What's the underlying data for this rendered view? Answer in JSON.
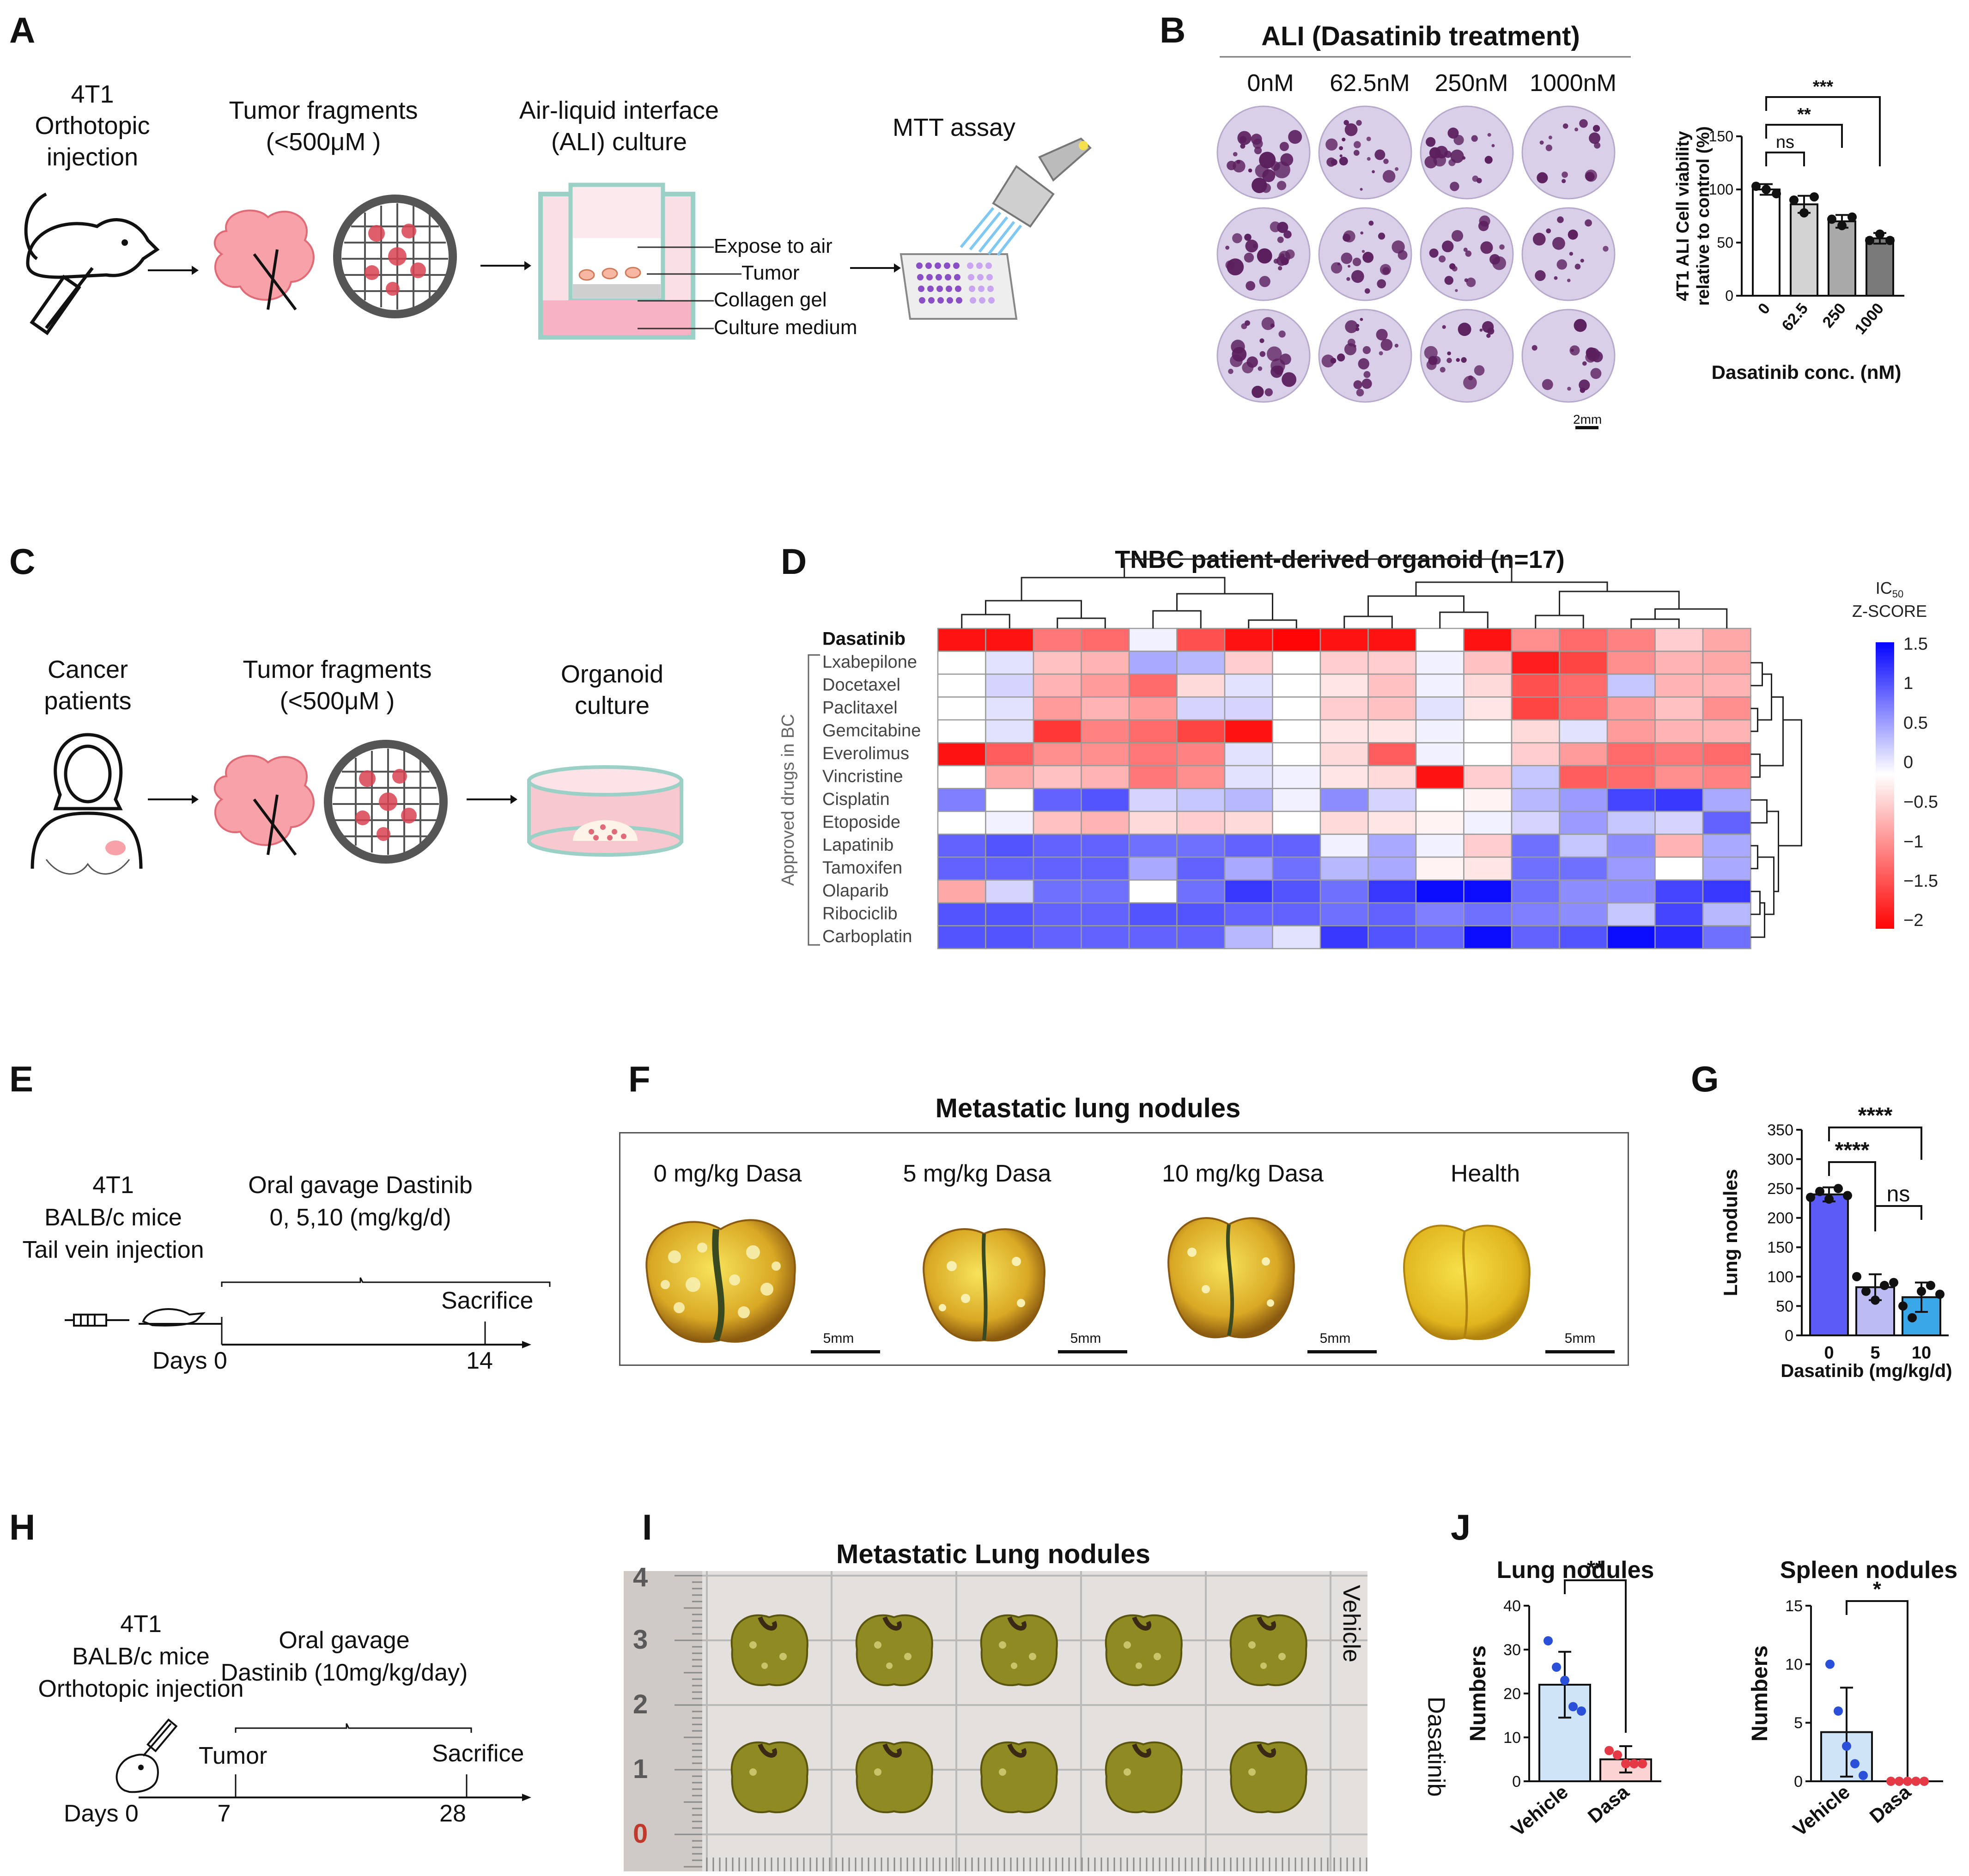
{
  "panels": [
    "A",
    "B",
    "C",
    "D",
    "E",
    "F",
    "G",
    "H",
    "I",
    "J"
  ],
  "A": {
    "step1": [
      "4T1",
      "Orthotopic",
      "injection"
    ],
    "step2": [
      "Tumor fragments",
      "(<500μM )"
    ],
    "step3": [
      "Air-liquid interface",
      "(ALI) culture"
    ],
    "step4": "MTT assay",
    "labels": [
      "Expose to air",
      "Tumor",
      "Collagen gel",
      "Culture medium"
    ]
  },
  "B": {
    "title": "ALI (Dasatinib treatment)",
    "columns": [
      "0nM",
      "62.5nM",
      "250nM",
      "1000nM"
    ],
    "scalebar": "2mm"
  },
  "C": {
    "step1": [
      "Cancer",
      "patients"
    ],
    "step2": [
      "Tumor fragments",
      "(<500μM )"
    ],
    "step3": [
      "Organoid",
      "culture"
    ]
  },
  "D": {
    "title": "TNBC patient-derived organoid (n=17)",
    "group_label": "Approved drugs in BC",
    "rows": [
      "Dasatinib",
      "Lxabepilone",
      "Docetaxel",
      "Paclitaxel",
      "Gemcitabine",
      "Everolimus",
      "Vincristine",
      "Cisplatin",
      "Etoposide",
      "Lapatinib",
      "Tamoxifen",
      "Olaparib",
      "Ribociclib",
      "Carboplatin"
    ],
    "legend_title_main": "IC",
    "legend_title_sub": "50",
    "legend_title_2": "Z-SCORE",
    "legend_ticks": [
      "1.5",
      "1",
      "0.5",
      "0",
      "−0.5",
      "−1",
      "−1.5",
      "−2"
    ],
    "matrix": [
      [
        -1.9,
        -1.9,
        -1.1,
        -1.2,
        0.1,
        -1.4,
        -1.9,
        -2,
        -1.9,
        -1.9,
        0,
        -1.9,
        -0.9,
        -1.2,
        -1,
        -0.4,
        -0.7
      ],
      [
        0,
        0.2,
        -0.5,
        -0.6,
        0.6,
        0.5,
        -0.4,
        0,
        -0.4,
        -0.4,
        0.1,
        -0.5,
        -1.8,
        -1.5,
        -0.9,
        -0.6,
        -0.7
      ],
      [
        0,
        0.3,
        -0.6,
        -0.8,
        -1.2,
        -0.3,
        0.2,
        0,
        -0.2,
        -0.5,
        0.1,
        -0.3,
        -1.4,
        -1.2,
        0.4,
        -0.6,
        -0.6
      ],
      [
        0,
        0.2,
        -0.8,
        -0.6,
        -0.8,
        0.3,
        0.3,
        0,
        -0.4,
        -0.5,
        0.2,
        -0.2,
        -1.5,
        -1.2,
        -0.8,
        -0.5,
        -0.9
      ],
      [
        0,
        0.2,
        -1.6,
        -1.0,
        -1.2,
        -1.5,
        -1.9,
        0,
        -0.2,
        -0.2,
        0.1,
        0,
        -0.3,
        0.2,
        -0.8,
        -0.6,
        -0.6
      ],
      [
        -1.9,
        -1.3,
        -0.9,
        -0.9,
        -1.1,
        -1.0,
        0.2,
        0,
        -0.3,
        -1.3,
        0.1,
        0,
        -0.4,
        -0.8,
        -1.2,
        -1.1,
        -1.2
      ],
      [
        0,
        -0.7,
        -0.5,
        -0.6,
        -1.1,
        -0.9,
        0.2,
        0.1,
        -0.2,
        -0.3,
        -1.9,
        -0.4,
        0.4,
        -1.3,
        -1.2,
        -0.9,
        -1.0
      ],
      [
        0.9,
        0,
        1.1,
        1.2,
        0.3,
        0.4,
        0.5,
        0.1,
        0.8,
        0.3,
        0,
        -0.1,
        0.5,
        0.7,
        1.3,
        1.4,
        0.6
      ],
      [
        0,
        0.1,
        -0.5,
        -0.6,
        -0.3,
        -0.4,
        -0.3,
        0,
        -0.3,
        -0.2,
        -0.1,
        0.1,
        0.3,
        0.7,
        0.4,
        0.3,
        1.1
      ],
      [
        1.1,
        1.2,
        1.1,
        1.1,
        1.0,
        1.0,
        1.1,
        1.1,
        0.1,
        0.6,
        0.1,
        -0.4,
        1.0,
        0.4,
        0.8,
        -0.6,
        0.6
      ],
      [
        1.1,
        1.1,
        1.1,
        1.1,
        0.6,
        1.1,
        0.6,
        1.0,
        0.5,
        0.6,
        -0.1,
        -0.2,
        1.0,
        1.0,
        0.7,
        0,
        0.6
      ],
      [
        -0.7,
        0.3,
        1.0,
        1.0,
        0,
        1.0,
        1.4,
        1.2,
        1.0,
        1.4,
        1.7,
        1.7,
        1.0,
        0.8,
        0.8,
        1.3,
        1.4
      ],
      [
        1.2,
        1.2,
        1.1,
        1.1,
        1.2,
        1.2,
        1.1,
        1.1,
        1.0,
        1.1,
        0.9,
        1.0,
        0.9,
        0.8,
        0.4,
        1.3,
        0.5
      ],
      [
        1.2,
        1.2,
        1.1,
        1.1,
        1.1,
        1.1,
        0.5,
        0.2,
        1.4,
        1.2,
        1.1,
        1.7,
        1.1,
        1.2,
        1.7,
        1.5,
        1.0
      ]
    ]
  },
  "E": {
    "line1": [
      "4T1",
      "BALB/c mice",
      "Tail vein injection"
    ],
    "line2": [
      "Oral gavage Dastinib",
      "0, 5,10 (mg/kg/d)"
    ],
    "sacrifice": "Sacrifice",
    "days": "Days 0",
    "day_end": "14"
  },
  "F": {
    "title": "Metastatic lung nodules",
    "groups": [
      "0 mg/kg Dasa",
      "5 mg/kg Dasa",
      "10 mg/kg Dasa",
      "Health"
    ],
    "scalebar": "5mm"
  },
  "H": {
    "line1": [
      "4T1",
      "BALB/c mice",
      "Orthotopic injection"
    ],
    "line2": [
      "Oral gavage",
      "Dastinib (10mg/kg/day)"
    ],
    "tumor": "Tumor",
    "sacrifice": "Sacrifice",
    "days": "Days 0",
    "day_mid": "7",
    "day_end": "28"
  },
  "I": {
    "title": "Metastatic Lung nodules",
    "ruler_numbers": [
      "4",
      "3",
      "2",
      "1",
      "0"
    ],
    "row_labels": [
      "Vehicle",
      "Dasatinib"
    ]
  },
  "chart_data": [
    {
      "id": "B",
      "type": "bar",
      "categories": [
        "0",
        "62.5",
        "250",
        "1000"
      ],
      "values": [
        100,
        86,
        70,
        54
      ],
      "errors": [
        5,
        8,
        6,
        5
      ],
      "points": [
        [
          103,
          100,
          96
        ],
        [
          90,
          78,
          93
        ],
        [
          72,
          66,
          74
        ],
        [
          52,
          58,
          52
        ]
      ],
      "ylabel": "4T1 ALI Cell viability relative to control (%)",
      "xlabel": "Dasatinib conc. (nM)",
      "ylim": [
        0,
        150
      ],
      "yticks": [
        "0",
        "50",
        "100",
        "150"
      ],
      "bar_colors": [
        "#ffffff",
        "#d3d3d3",
        "#a9a9a9",
        "#7a7a7a"
      ],
      "significance": [
        {
          "from": 0,
          "to": 1,
          "label": "ns"
        },
        {
          "from": 0,
          "to": 2,
          "label": "**"
        },
        {
          "from": 0,
          "to": 3,
          "label": "***"
        }
      ]
    },
    {
      "id": "G",
      "type": "bar",
      "categories": [
        "0",
        "5",
        "10"
      ],
      "values": [
        240,
        82,
        65
      ],
      "errors": [
        12,
        22,
        25
      ],
      "points": [
        [
          235,
          245,
          232,
          250,
          238
        ],
        [
          100,
          75,
          60,
          85,
          90
        ],
        [
          50,
          30,
          75,
          85,
          70
        ]
      ],
      "ylabel": "Lung nodules",
      "xlabel": "Dasatinib (mg/kg/d)",
      "ylim": [
        0,
        350
      ],
      "yticks": [
        "0",
        "50",
        "100",
        "150",
        "200",
        "250",
        "300",
        "350"
      ],
      "bar_colors": [
        "#5b5bf5",
        "#bcbcf3",
        "#3aa8e8"
      ],
      "significance": [
        {
          "from": 0,
          "to": 1,
          "label": "****"
        },
        {
          "from": 0,
          "to": 2,
          "label": "****"
        },
        {
          "from": 1,
          "to": 2,
          "label": "ns"
        }
      ]
    },
    {
      "id": "J-lung",
      "type": "bar",
      "title": "Lung nodules",
      "categories": [
        "Vehicle",
        "Dasa"
      ],
      "values": [
        22,
        5
      ],
      "errors": [
        7.5,
        3
      ],
      "points": [
        [
          32,
          26,
          23,
          17,
          16
        ],
        [
          7,
          6,
          4,
          4,
          4
        ]
      ],
      "ylabel": "Numbers",
      "ylim": [
        0,
        40
      ],
      "yticks": [
        "0",
        "10",
        "20",
        "30",
        "40"
      ],
      "bar_colors": [
        "#cfe5f7",
        "#fbd3d3"
      ],
      "point_colors": [
        "#2a4fd8",
        "#e63946"
      ],
      "significance": [
        {
          "from": 0,
          "to": 1,
          "label": "**"
        }
      ]
    },
    {
      "id": "J-spleen",
      "type": "bar",
      "title": "Spleen nodules",
      "categories": [
        "Vehicle",
        "Dasa"
      ],
      "values": [
        4.2,
        0
      ],
      "errors": [
        3.8,
        0
      ],
      "points": [
        [
          10,
          6,
          3,
          1.5,
          0.5
        ],
        [
          0,
          0,
          0,
          0,
          0
        ]
      ],
      "ylabel": "Numbers",
      "ylim": [
        0,
        15
      ],
      "yticks": [
        "0",
        "5",
        "10",
        "15"
      ],
      "bar_colors": [
        "#cfe5f7",
        "#fbd3d3"
      ],
      "point_colors": [
        "#2a4fd8",
        "#e63946"
      ],
      "significance": [
        {
          "from": 0,
          "to": 1,
          "label": "*"
        }
      ]
    }
  ]
}
